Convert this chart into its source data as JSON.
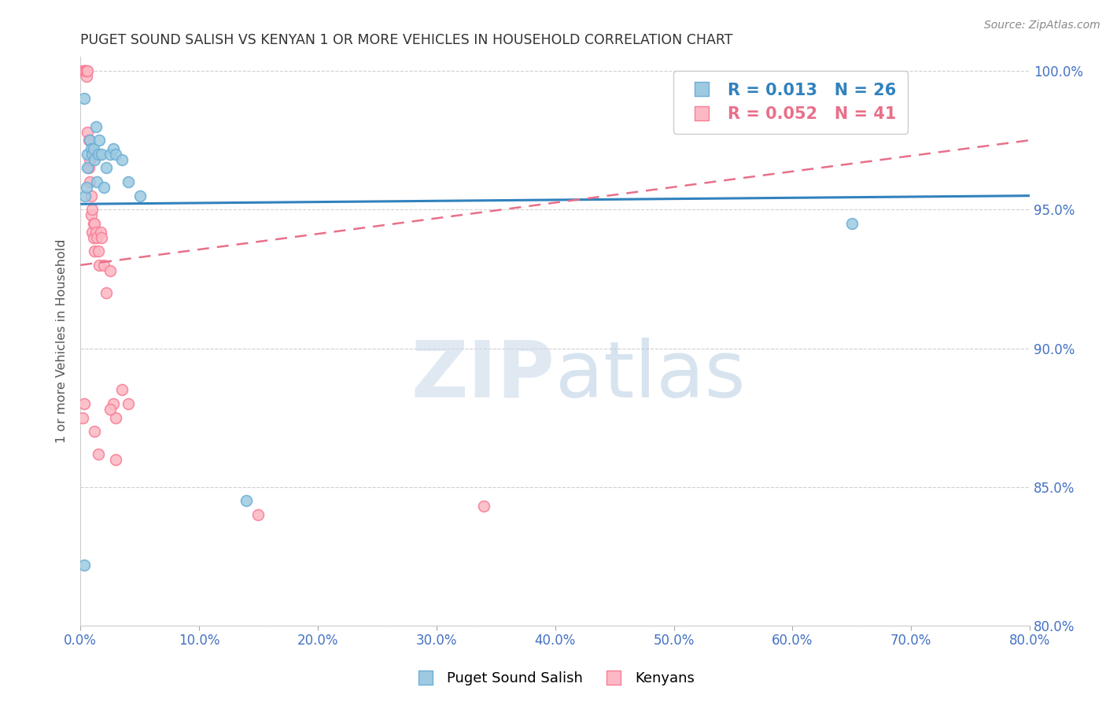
{
  "title": "PUGET SOUND SALISH VS KENYAN 1 OR MORE VEHICLES IN HOUSEHOLD CORRELATION CHART",
  "source": "Source: ZipAtlas.com",
  "ylabel": "1 or more Vehicles in Household",
  "watermark_zip": "ZIP",
  "watermark_atlas": "atlas",
  "series1_label": "Puget Sound Salish",
  "series2_label": "Kenyans",
  "series1_color": "#9ecae1",
  "series2_color": "#fcb8c4",
  "series1_edge_color": "#6baed6",
  "series2_edge_color": "#f87d96",
  "series1_line_color": "#3182bd",
  "series2_line_color": "#e8708a",
  "xmin": 0.0,
  "xmax": 0.8,
  "ymin": 0.8,
  "ymax": 1.005,
  "yticks": [
    0.8,
    0.85,
    0.9,
    0.95,
    1.0
  ],
  "xticks": [
    0.0,
    0.1,
    0.2,
    0.3,
    0.4,
    0.5,
    0.6,
    0.7,
    0.8
  ],
  "grid_color": "#d0d0d0",
  "title_color": "#333333",
  "tick_label_color": "#4472c4",
  "series1_x": [
    0.003,
    0.004,
    0.005,
    0.006,
    0.006,
    0.008,
    0.009,
    0.01,
    0.011,
    0.012,
    0.013,
    0.014,
    0.015,
    0.016,
    0.018,
    0.02,
    0.022,
    0.025,
    0.028,
    0.03,
    0.035,
    0.04,
    0.05,
    0.14,
    0.65,
    0.003
  ],
  "series1_y": [
    0.822,
    0.955,
    0.958,
    0.97,
    0.965,
    0.975,
    0.972,
    0.97,
    0.972,
    0.968,
    0.98,
    0.96,
    0.97,
    0.975,
    0.97,
    0.958,
    0.965,
    0.97,
    0.972,
    0.97,
    0.968,
    0.96,
    0.955,
    0.845,
    0.945,
    0.99
  ],
  "series2_x": [
    0.002,
    0.003,
    0.004,
    0.004,
    0.005,
    0.005,
    0.006,
    0.006,
    0.007,
    0.007,
    0.008,
    0.008,
    0.009,
    0.009,
    0.01,
    0.01,
    0.011,
    0.011,
    0.012,
    0.012,
    0.013,
    0.014,
    0.015,
    0.016,
    0.017,
    0.018,
    0.02,
    0.022,
    0.025,
    0.028,
    0.03,
    0.035,
    0.04,
    0.012,
    0.015,
    0.025,
    0.03,
    0.34,
    0.002,
    0.003,
    0.15
  ],
  "series2_y": [
    1.0,
    1.0,
    1.0,
    1.0,
    0.998,
    1.0,
    1.0,
    0.978,
    0.975,
    0.965,
    0.968,
    0.96,
    0.955,
    0.948,
    0.95,
    0.942,
    0.945,
    0.94,
    0.935,
    0.945,
    0.942,
    0.94,
    0.935,
    0.93,
    0.942,
    0.94,
    0.93,
    0.92,
    0.928,
    0.88,
    0.875,
    0.885,
    0.88,
    0.87,
    0.862,
    0.878,
    0.86,
    0.843,
    0.875,
    0.88,
    0.84
  ],
  "series1_marker_size": 100,
  "series2_marker_size": 100,
  "series1_R": 0.013,
  "series2_R": 0.052,
  "series1_N": 26,
  "series2_N": 41,
  "trendline1_x": [
    0.0,
    0.8
  ],
  "trendline1_y": [
    0.952,
    0.955
  ],
  "trendline2_x": [
    0.0,
    0.8
  ],
  "trendline2_y": [
    0.93,
    0.975
  ],
  "background_color": "#ffffff",
  "plot_bgcolor": "#ffffff"
}
